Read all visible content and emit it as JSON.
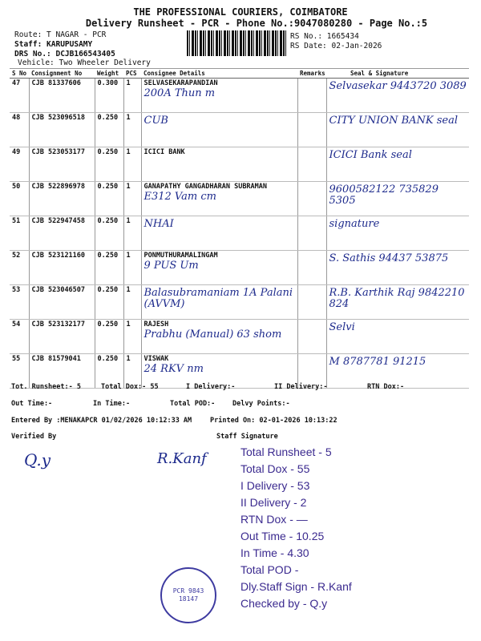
{
  "header": {
    "title": "THE PROFESSIONAL COURIERS, COIMBATORE",
    "subtitle": "Delivery Runsheet - PCR - Phone No.:9047080280 - Page No.:5",
    "route": "Route: T NAGAR - PCR",
    "staff": "Staff: KARUPUSAMY",
    "drs": "DRS No.: DCJB166543405",
    "vehicle": "Vehicle: Two Wheeler Delivery",
    "rs_no": "RS No.: 1665434",
    "rs_date": "RS Date: 02-Jan-2026"
  },
  "table": {
    "columns": [
      "S No",
      "Consignment No",
      "Weight",
      "PCS",
      "Consignee Details",
      "Remarks",
      "Seal & Signature"
    ],
    "rows": [
      {
        "sno": "47",
        "cn": "CJB 81337606",
        "weight": "0.300",
        "pcs": "1",
        "consignee": "SELVASEKARAPANDIAN",
        "hand": "200A Thun m",
        "sign": "Selvasekar  9443720 3089"
      },
      {
        "sno": "48",
        "cn": "CJB 523096518",
        "weight": "0.250",
        "pcs": "1",
        "consignee": "",
        "hand": "CUB",
        "sign": "CITY UNION BANK seal"
      },
      {
        "sno": "49",
        "cn": "CJB 523053177",
        "weight": "0.250",
        "pcs": "1",
        "consignee": "ICICI BANK",
        "hand": "",
        "sign": "ICICI Bank seal"
      },
      {
        "sno": "50",
        "cn": "CJB 522896978",
        "weight": "0.250",
        "pcs": "1",
        "consignee": "GANAPATHY GANGADHARAN SUBRAMAN",
        "hand": "E312 Vam cm",
        "sign": "9600582122  735829 5305"
      },
      {
        "sno": "51",
        "cn": "CJB 522947458",
        "weight": "0.250",
        "pcs": "1",
        "consignee": "",
        "hand": "NHAI",
        "sign": "signature"
      },
      {
        "sno": "52",
        "cn": "CJB 523121160",
        "weight": "0.250",
        "pcs": "1",
        "consignee": "PONMUTHURAMALINGAM",
        "hand": "9 PUS Um",
        "sign": "S. Sathis  94437 53875"
      },
      {
        "sno": "53",
        "cn": "CJB 523046507",
        "weight": "0.250",
        "pcs": "1",
        "consignee": "",
        "hand": "Balasubramaniam 1A Palani (AVVM)",
        "sign": "R.B. Karthik Raj  9842210 824"
      },
      {
        "sno": "54",
        "cn": "CJB 523132177",
        "weight": "0.250",
        "pcs": "1",
        "consignee": "RAJESH",
        "hand": "Prabhu (Manual) 63 shom",
        "sign": "Selvi"
      },
      {
        "sno": "55",
        "cn": "CJB 81579041",
        "weight": "0.250",
        "pcs": "1",
        "consignee": "VISWAK",
        "hand": "24 RKV nm",
        "sign": "M  8787781 91215"
      }
    ]
  },
  "summary": {
    "tot_runsheet": "Tot. Runsheet:- 5",
    "total_dox": "Total Dox:-  55",
    "i_delivery": "I Delivery:-",
    "ii_delivery": "II Delivery:-",
    "rtn_dox": "RTN Dox:-",
    "out_time": "Out Time:-",
    "in_time": "In Time:-",
    "total_pod": "Total POD:-",
    "delvy_points": "Delvy Points:-",
    "entered_by": "Entered By :MENAKAPCR 01/02/2026 10:12:33 AM",
    "printed_on": "Printed On: 02-01-2026 10:13:22",
    "verified_by": "Verified By",
    "staff_signature": "Staff Signature"
  },
  "stamp": {
    "lines": [
      "Total Runsheet - 5",
      "Total Dox - 55",
      "I Delivery - 53",
      "II Delivery - 2",
      "RTN Dox - —",
      "Out Time - 10.25",
      "In Time - 4.30",
      "Total POD -",
      "Dly.Staff Sign - R.Kanf",
      "Checked by - Q.y"
    ]
  },
  "seal": {
    "text": "PCR 9843 18147"
  },
  "colors": {
    "ink": "#1d2a8c",
    "stamp": "#3b2a8f"
  }
}
